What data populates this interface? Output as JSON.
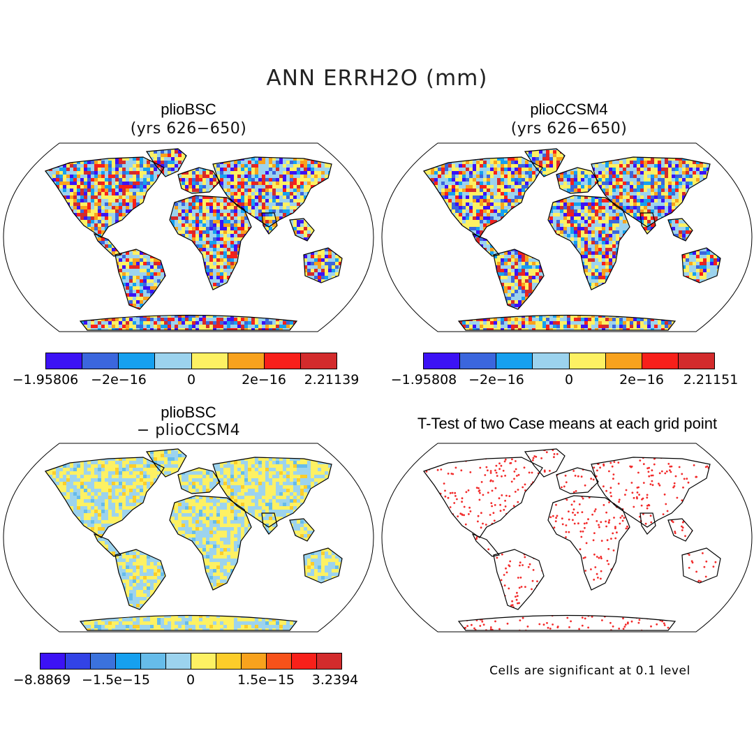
{
  "figure_title": "ANN ERRH2O (mm)",
  "panels": [
    {
      "id": "bsc",
      "title": "plioBSC",
      "subtitle": "(yrs 626−650)",
      "colorbar": {
        "colors": [
          "#3c12f5",
          "#3b66dd",
          "#16a0ef",
          "#9cd3ee",
          "#fdf163",
          "#f8a21d",
          "#f8201a",
          "#d32b2c"
        ],
        "labels": [
          "−1.95806",
          "−2e−16",
          "0",
          "2e−16",
          "2.21139"
        ]
      }
    },
    {
      "id": "ccsm4",
      "title": "plioCCSM4",
      "subtitle": "(yrs 626−650)",
      "colorbar": {
        "colors": [
          "#3c12f5",
          "#3b66dd",
          "#16a0ef",
          "#9cd3ee",
          "#fdf163",
          "#f8a21d",
          "#f8201a",
          "#d32b2c"
        ],
        "labels": [
          "−1.95808",
          "−2e−16",
          "0",
          "2e−16",
          "2.21151"
        ]
      }
    },
    {
      "id": "diff",
      "title": "plioBSC",
      "subtitle": "− plioCCSM4",
      "colorbar": {
        "colors": [
          "#3c12f5",
          "#3243e6",
          "#3b72dc",
          "#16a0ef",
          "#66bcea",
          "#9cd3ee",
          "#fdf163",
          "#fccd2a",
          "#f8a21d",
          "#f7521a",
          "#f8201a",
          "#d32b2c"
        ],
        "labels": [
          "−8.8869",
          "−1.5e−15",
          "0",
          "1.5e−15",
          "3.2394"
        ]
      }
    },
    {
      "id": "ttest",
      "title": "T-Test of two Case means at each grid point",
      "note": "Cells are significant at 0.1 level"
    }
  ],
  "colors": {
    "map_outline": "#000000",
    "significant_dot": "#f22a2a",
    "land_fill_default": "#bfe3b8"
  }
}
